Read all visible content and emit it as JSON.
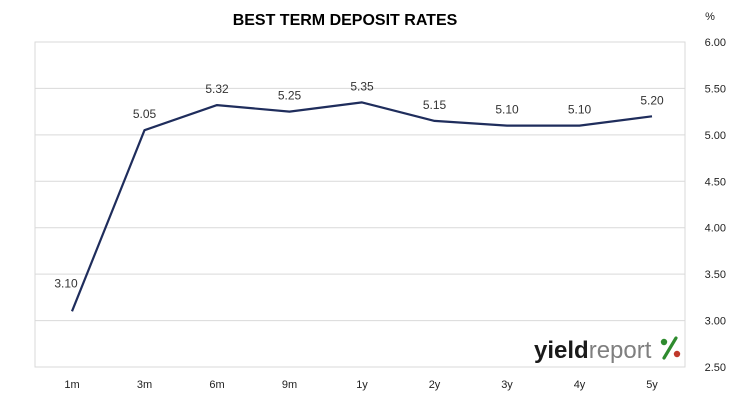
{
  "chart_data": {
    "type": "line",
    "title": "BEST TERM  DEPOSIT  RATES",
    "unit_label": "%",
    "categories": [
      "1m",
      "3m",
      "6m",
      "9m",
      "1y",
      "2y",
      "3y",
      "4y",
      "5y"
    ],
    "values": [
      3.1,
      5.05,
      5.32,
      5.25,
      5.35,
      5.15,
      5.1,
      5.1,
      5.2
    ],
    "value_labels": [
      "3.10",
      "5.05",
      "5.32",
      "5.25",
      "5.35",
      "5.15",
      "5.10",
      "5.10",
      "5.20"
    ],
    "ylim": [
      2.5,
      6.0
    ],
    "yticks": [
      "2.50",
      "3.00",
      "3.50",
      "4.00",
      "4.50",
      "5.00",
      "5.50",
      "6.00"
    ],
    "y_axis_side": "right",
    "grid": true,
    "legend": "none",
    "line_color": "#1f2d5c"
  },
  "watermark": {
    "brand_bold": "yield",
    "brand_light": "report",
    "brand_symbol": "%",
    "colors": {
      "green": "#2e8b2e",
      "red": "#c0392b"
    }
  }
}
